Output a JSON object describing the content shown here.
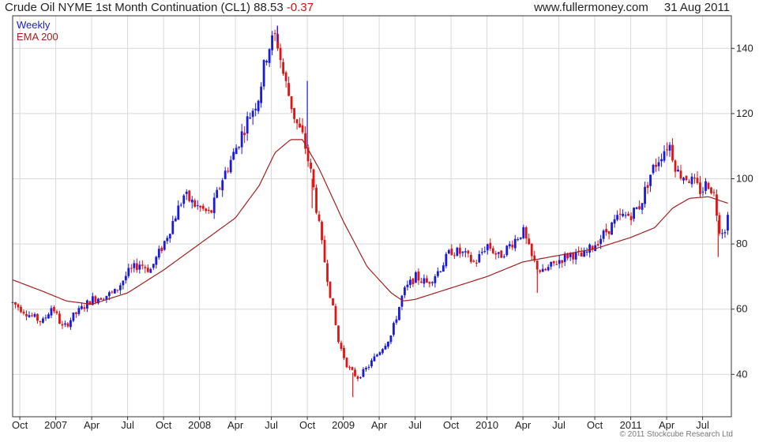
{
  "header": {
    "title": "Crude Oil NYME 1st Month Continuation (CL1)",
    "last": "88.53",
    "change": "-0.37",
    "site": "www.fullermoney.com",
    "date": "31 Aug 2011"
  },
  "copyright": "© 2011 Stockcube Research Ltd",
  "colors": {
    "up": "#1a1adf",
    "down": "#e01414",
    "ema": "#a02020",
    "grid": "#d8d8d8",
    "frame": "#333333"
  },
  "chart_data": {
    "type": "candlestick",
    "frequency": "Weekly",
    "legend": [
      {
        "name": "Weekly",
        "color": "#1a1adf"
      },
      {
        "name": "EMA 200",
        "color": "#a02020"
      }
    ],
    "legend_position": "top-left",
    "grid": true,
    "y_axis_side": "right",
    "ylim": [
      27,
      150
    ],
    "yticks": [
      40,
      60,
      80,
      100,
      120,
      140
    ],
    "xlim": [
      0,
      60
    ],
    "xticks": [
      {
        "label": "Oct",
        "m": 0.6
      },
      {
        "label": "2007",
        "m": 3.6
      },
      {
        "label": "Apr",
        "m": 6.6
      },
      {
        "label": "Jul",
        "m": 9.6
      },
      {
        "label": "Oct",
        "m": 12.6
      },
      {
        "label": "2008",
        "m": 15.6
      },
      {
        "label": "Apr",
        "m": 18.6
      },
      {
        "label": "Jul",
        "m": 21.6
      },
      {
        "label": "Oct",
        "m": 24.6
      },
      {
        "label": "2009",
        "m": 27.6
      },
      {
        "label": "Apr",
        "m": 30.6
      },
      {
        "label": "Jul",
        "m": 33.6
      },
      {
        "label": "Oct",
        "m": 36.6
      },
      {
        "label": "2010",
        "m": 39.6
      },
      {
        "label": "Apr",
        "m": 42.6
      },
      {
        "label": "Jul",
        "m": 45.6
      },
      {
        "label": "Oct",
        "m": 48.6
      },
      {
        "label": "2011",
        "m": 51.6
      },
      {
        "label": "Apr",
        "m": 54.6
      },
      {
        "label": "Jul",
        "m": 57.6
      }
    ],
    "price_path": [
      [
        0,
        62
      ],
      [
        1.5,
        58
      ],
      [
        2.5,
        56
      ],
      [
        3.3,
        61
      ],
      [
        4.2,
        54
      ],
      [
        5.1,
        58
      ],
      [
        6.6,
        63
      ],
      [
        8.5,
        65
      ],
      [
        9.6,
        71
      ],
      [
        10.6,
        74
      ],
      [
        11.5,
        72
      ],
      [
        12.6,
        80
      ],
      [
        13.5,
        88
      ],
      [
        14.3,
        95
      ],
      [
        15.2,
        92
      ],
      [
        16.5,
        89
      ],
      [
        17.5,
        100
      ],
      [
        18.5,
        108
      ],
      [
        19.6,
        118
      ],
      [
        20.5,
        125
      ],
      [
        21.3,
        140
      ],
      [
        22.0,
        144
      ],
      [
        22.6,
        132
      ],
      [
        23.6,
        118
      ],
      [
        24.3,
        112
      ],
      [
        25.0,
        100
      ],
      [
        25.8,
        80
      ],
      [
        26.5,
        65
      ],
      [
        27.2,
        50
      ],
      [
        28.0,
        42
      ],
      [
        28.8,
        39
      ],
      [
        29.6,
        42
      ],
      [
        30.6,
        47
      ],
      [
        31.6,
        52
      ],
      [
        32.6,
        65
      ],
      [
        33.6,
        70
      ],
      [
        34.6,
        68
      ],
      [
        35.6,
        72
      ],
      [
        36.6,
        78
      ],
      [
        37.6,
        77
      ],
      [
        38.6,
        74
      ],
      [
        39.6,
        80
      ],
      [
        40.6,
        76
      ],
      [
        41.6,
        80
      ],
      [
        42.6,
        84
      ],
      [
        43.4,
        75
      ],
      [
        44.2,
        71
      ],
      [
        45.6,
        75
      ],
      [
        46.6,
        77
      ],
      [
        47.6,
        76
      ],
      [
        48.6,
        80
      ],
      [
        49.6,
        84
      ],
      [
        50.6,
        88
      ],
      [
        51.6,
        89
      ],
      [
        52.4,
        92
      ],
      [
        53.3,
        102
      ],
      [
        54.2,
        108
      ],
      [
        54.8,
        111
      ],
      [
        55.5,
        102
      ],
      [
        56.5,
        100
      ],
      [
        57.5,
        96
      ],
      [
        58.0,
        99
      ],
      [
        58.5,
        96
      ],
      [
        59.0,
        85
      ],
      [
        59.4,
        84
      ],
      [
        59.7,
        88.5
      ]
    ],
    "ema_path": [
      [
        0,
        69
      ],
      [
        2.5,
        65.5
      ],
      [
        4.5,
        62.5
      ],
      [
        6.6,
        61.5
      ],
      [
        9.6,
        65
      ],
      [
        12.6,
        72
      ],
      [
        15.6,
        80
      ],
      [
        18.6,
        88
      ],
      [
        20.6,
        98
      ],
      [
        21.9,
        108
      ],
      [
        23.2,
        112
      ],
      [
        24.2,
        112
      ],
      [
        25.6,
        103
      ],
      [
        27.6,
        87
      ],
      [
        29.6,
        73
      ],
      [
        31.6,
        65
      ],
      [
        32.6,
        62.5
      ],
      [
        33.6,
        63
      ],
      [
        36.6,
        66.5
      ],
      [
        39.6,
        70
      ],
      [
        42.6,
        74.5
      ],
      [
        45.6,
        76.5
      ],
      [
        48.6,
        78.5
      ],
      [
        51.6,
        82
      ],
      [
        53.6,
        85
      ],
      [
        55.1,
        91
      ],
      [
        56.5,
        94
      ],
      [
        58.1,
        94.5
      ],
      [
        59.7,
        92.5
      ]
    ],
    "spikes": [
      {
        "m": 24.6,
        "high": 130,
        "low": 110
      },
      {
        "m": 25.0,
        "low": 91
      },
      {
        "m": 43.8,
        "low": 65
      },
      {
        "m": 58.9,
        "low": 76
      },
      {
        "m": 28.4,
        "low": 33
      },
      {
        "m": 22.1,
        "high": 147
      }
    ]
  }
}
